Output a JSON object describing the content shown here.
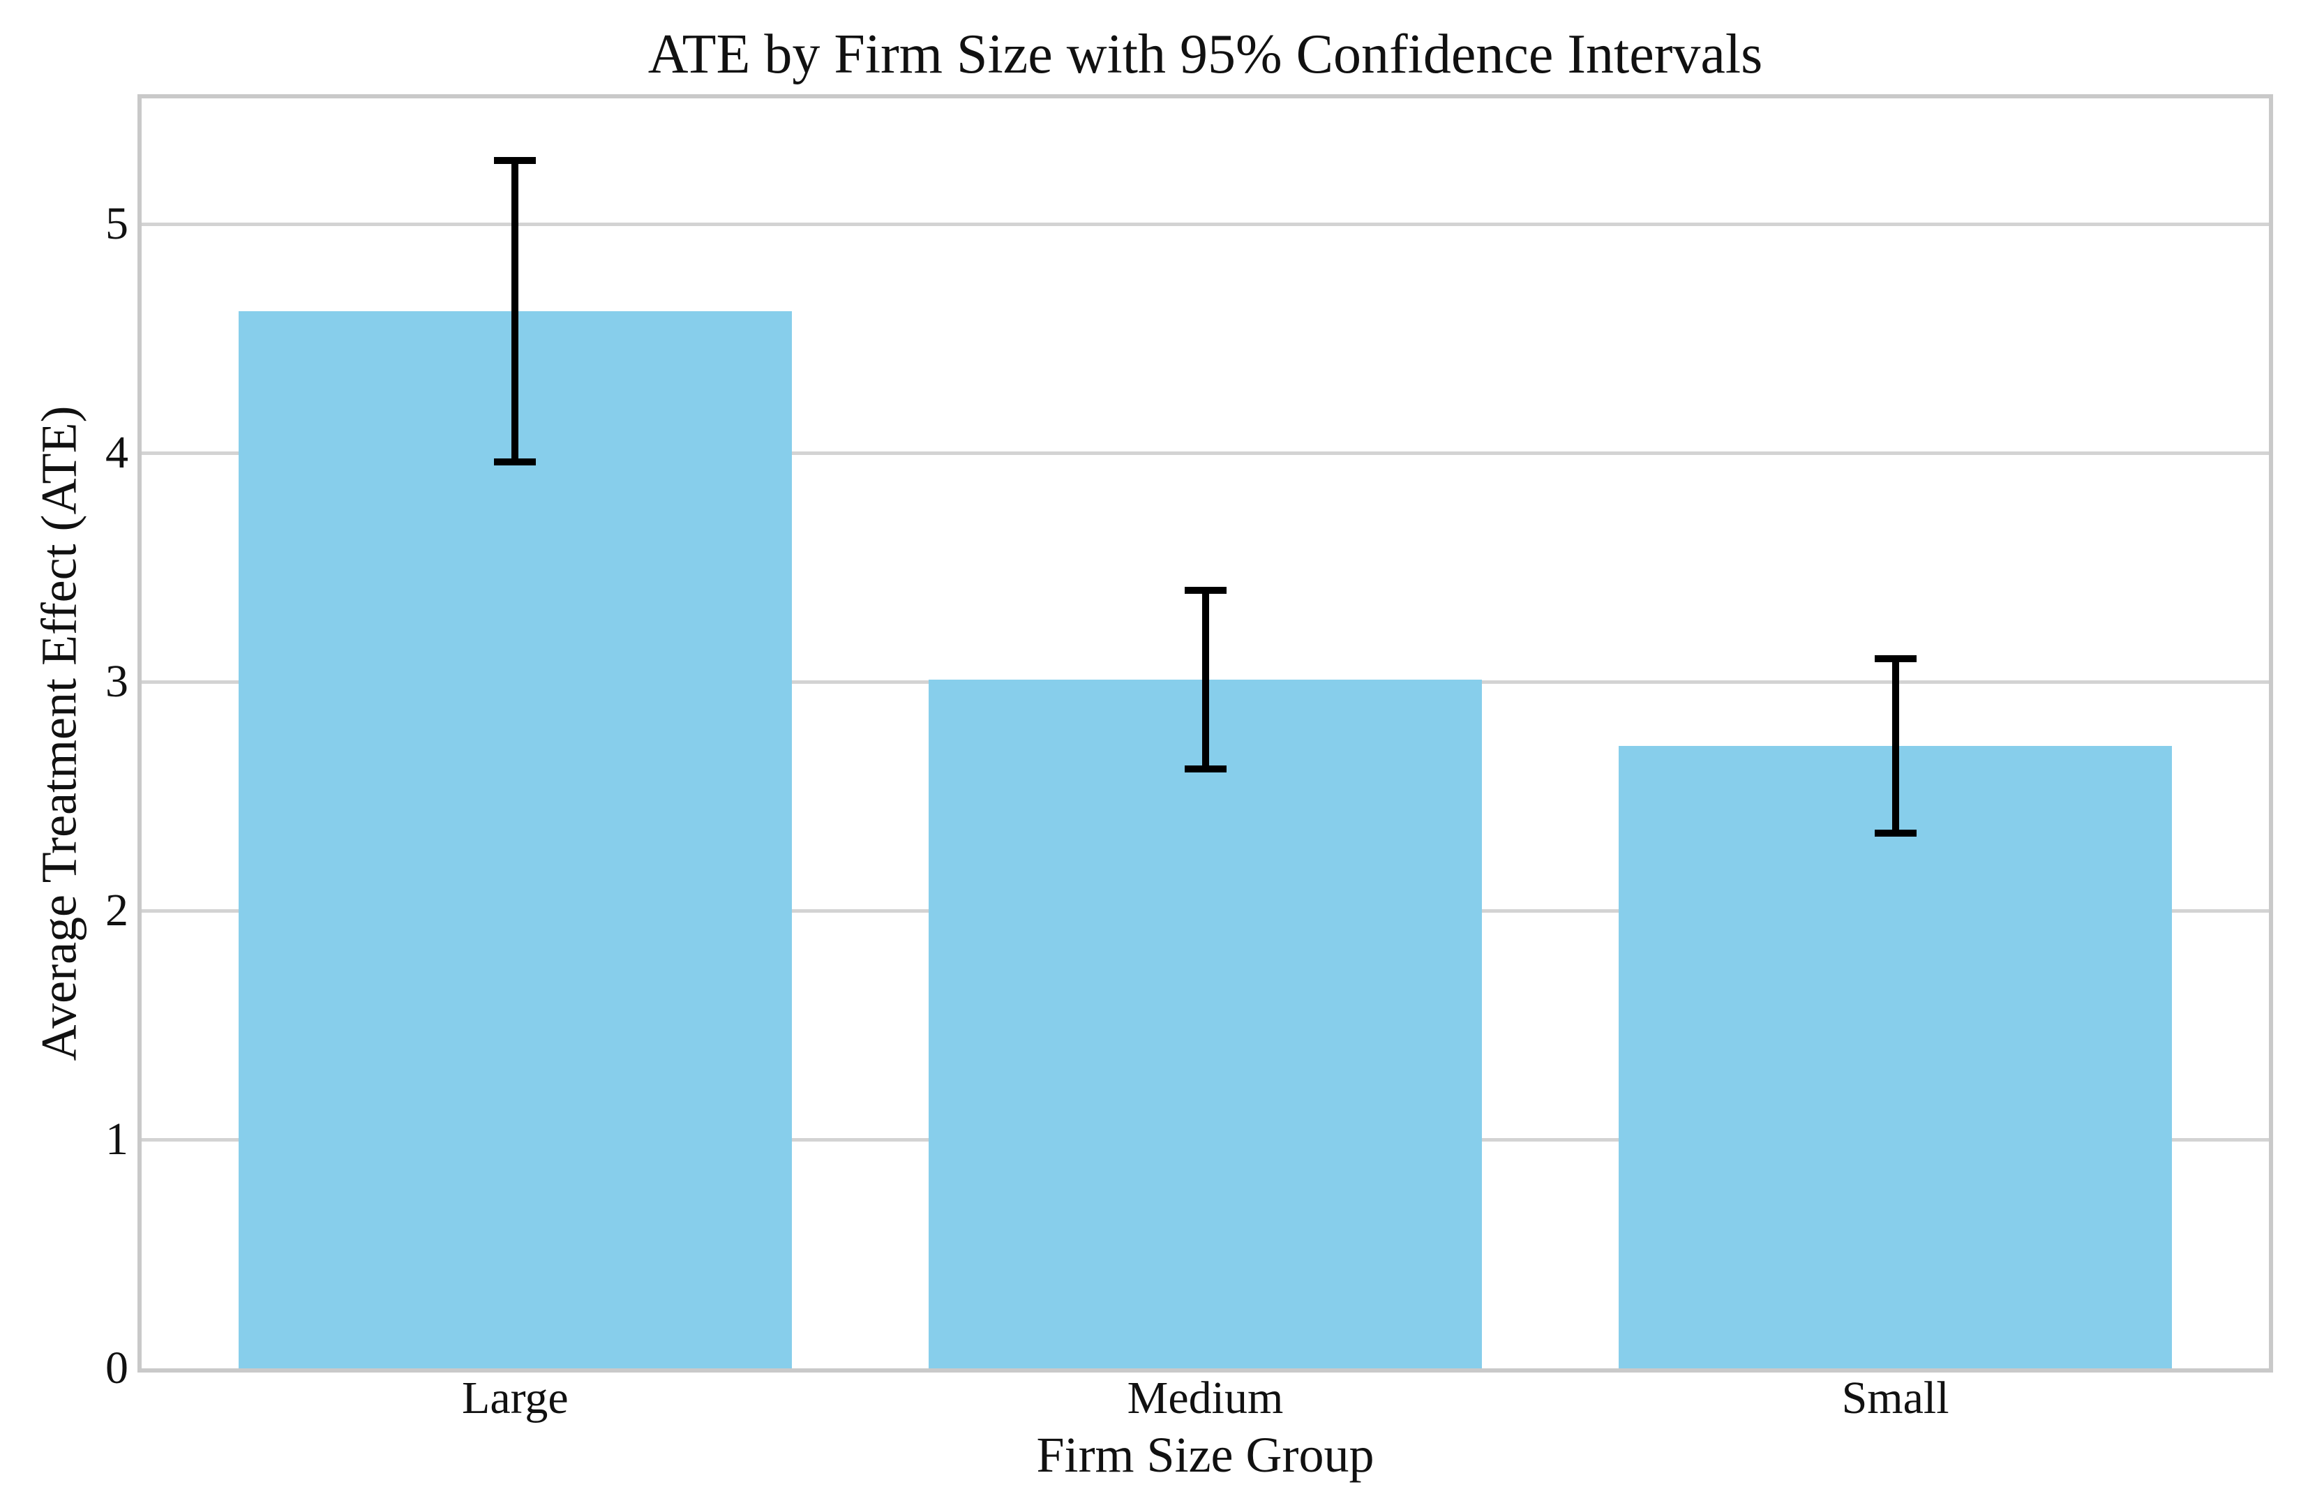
{
  "chart_data": {
    "type": "bar",
    "title": "ATE by Firm Size with 95% Confidence Intervals",
    "xlabel": "Firm Size Group",
    "ylabel": "Average Treatment Effect (ATE)",
    "categories": [
      "Large",
      "Medium",
      "Small"
    ],
    "values": [
      4.62,
      3.01,
      2.72
    ],
    "errors": [
      0.66,
      0.39,
      0.38
    ],
    "ci_low": [
      3.96,
      2.62,
      2.34
    ],
    "ci_high": [
      5.28,
      3.4,
      3.1
    ],
    "yticks": [
      0,
      1,
      2,
      3,
      4,
      5
    ],
    "ylim": [
      0,
      5.55
    ],
    "grid": true,
    "legend": "none",
    "bar_color": "#87CEEB",
    "error_color": "#000000",
    "grid_color": "#d3d3d3",
    "spine_color": "#c9c9c9"
  }
}
